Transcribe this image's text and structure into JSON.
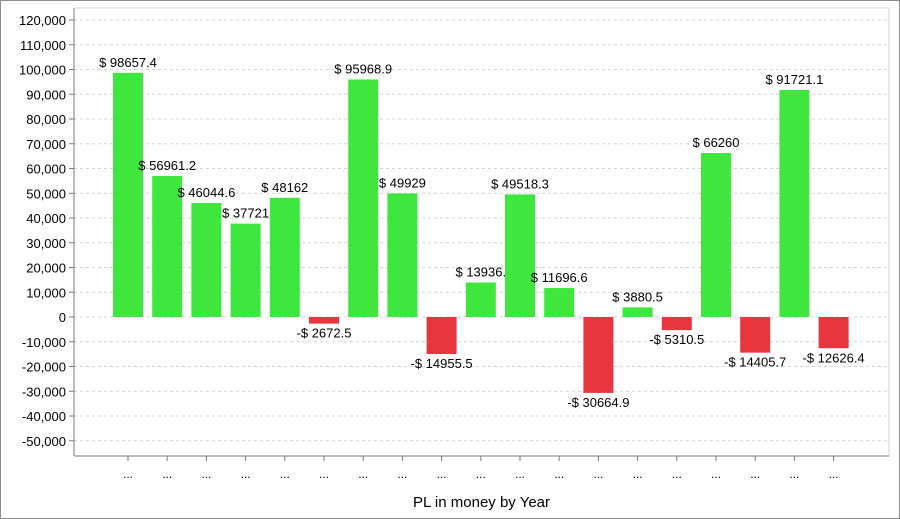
{
  "chart_data": {
    "type": "bar",
    "title": "",
    "xlabel": "PL in money by Year",
    "ylabel": "",
    "ylim": [
      -55000,
      120000
    ],
    "yticks": [
      120000,
      110000,
      100000,
      90000,
      80000,
      70000,
      60000,
      50000,
      40000,
      30000,
      20000,
      10000,
      0,
      -10000,
      -20000,
      -30000,
      -40000,
      -50000
    ],
    "ytick_labels": [
      "120,000",
      "110,000",
      "100,000",
      "90,000",
      "80,000",
      "70,000",
      "60,000",
      "50,000",
      "40,000",
      "30,000",
      "20,000",
      "10,000",
      "0",
      "-10,000",
      "-20,000",
      "-30,000",
      "-40,000",
      "-50,000"
    ],
    "categories": [
      "...",
      "...",
      "...",
      "...",
      "...",
      "...",
      "...",
      "...",
      "...",
      "...",
      "...",
      "...",
      "...",
      "...",
      "...",
      "...",
      "...",
      "...",
      "..."
    ],
    "values": [
      98657.4,
      56961.2,
      46044.6,
      37721,
      48162,
      -2672.5,
      95968.9,
      49929,
      -14955.5,
      13936,
      49518.3,
      11696.6,
      -30664.9,
      3880.5,
      -5310.5,
      66260,
      -14405.7,
      91721.1,
      -12626.4
    ],
    "data_labels": [
      "$ 98657.4",
      "$ 56961.2",
      "$ 46044.6",
      "$ 37721",
      "$ 48162",
      "-$ 2672.5",
      "$ 95968.9",
      "$ 49929",
      "-$ 14955.5",
      "$ 13936.",
      "$ 49518.3",
      "$ 11696.6",
      "-$ 30664.9",
      "$ 3880.5",
      "-$ 5310.5",
      "$ 66260",
      "-$ 14405.7",
      "$ 91721.1",
      "-$ 12626.4"
    ],
    "grid": true,
    "colors": {
      "positive": "#3ee63e",
      "negative": "#e8363e",
      "grid": "#d4d4d4",
      "axis": "#7a7a7a"
    }
  }
}
